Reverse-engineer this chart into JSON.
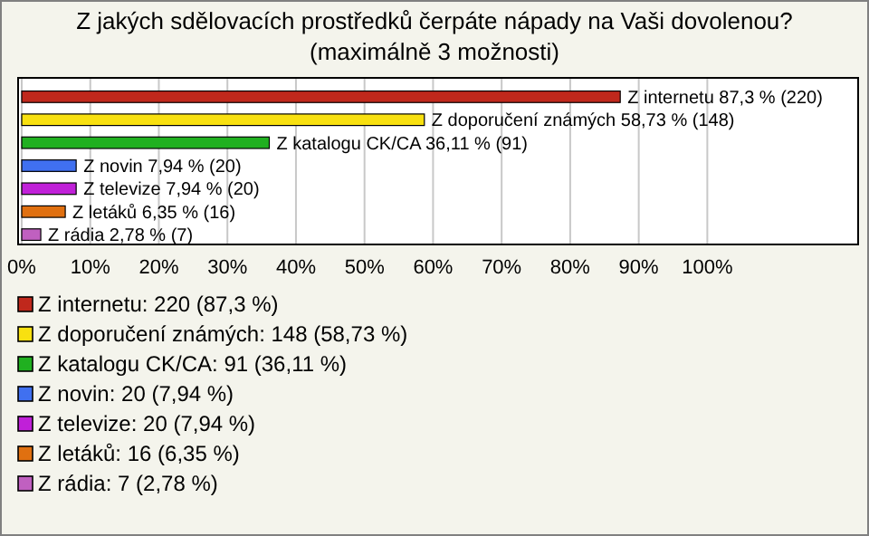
{
  "chart_data": {
    "type": "bar",
    "orientation": "horizontal",
    "title": "Z jakých sdělovacích prostředků čerpáte nápady na Vaši dovolenou?",
    "subtitle": "(maximálně 3 možnosti)",
    "categories": [
      null,
      null,
      null,
      null,
      null,
      null,
      null
    ],
    "series": [
      {
        "name": "Z internetu: 220 (87,3 %)",
        "color": "#c0281c",
        "values": [
          87.3,
          null,
          null,
          null,
          null,
          null,
          null
        ],
        "value_labels": [
          "Z internetu 87,3 % (220)",
          null,
          null,
          null,
          null,
          null,
          null
        ]
      },
      {
        "name": "Z doporučení známých: 148 (58,73 %)",
        "color": "#f8e010",
        "values": [
          null,
          58.73,
          null,
          null,
          null,
          null,
          null
        ],
        "value_labels": [
          null,
          "Z doporučení známých 58,73 % (148)",
          null,
          null,
          null,
          null,
          null
        ]
      },
      {
        "name": "Z katalogu CK/CA: 91 (36,11 %)",
        "color": "#20b020",
        "values": [
          null,
          null,
          36.11,
          null,
          null,
          null,
          null
        ],
        "value_labels": [
          null,
          null,
          "Z katalogu CK/CA 36,11 % (91)",
          null,
          null,
          null,
          null
        ]
      },
      {
        "name": "Z novin: 20 (7,94 %)",
        "color": "#4070f0",
        "values": [
          null,
          null,
          null,
          7.94,
          null,
          null,
          null
        ],
        "value_labels": [
          null,
          null,
          null,
          "Z novin 7,94 % (20)",
          null,
          null,
          null
        ]
      },
      {
        "name": "Z televize: 20 (7,94 %)",
        "color": "#c020d8",
        "values": [
          null,
          null,
          null,
          null,
          7.94,
          null,
          null
        ],
        "value_labels": [
          null,
          null,
          null,
          null,
          "Z televize 7,94 % (20)",
          null,
          null
        ]
      },
      {
        "name": "Z letáků: 16 (6,35 %)",
        "color": "#e07010",
        "values": [
          null,
          null,
          null,
          null,
          null,
          6.35,
          null
        ],
        "value_labels": [
          null,
          null,
          null,
          null,
          null,
          "Z letáků 6,35 % (16)",
          null
        ]
      },
      {
        "name": "Z rádia: 7 (2,78 %)",
        "color": "#c060c0",
        "values": [
          null,
          null,
          null,
          null,
          null,
          null,
          2.78
        ],
        "value_labels": [
          null,
          null,
          null,
          null,
          null,
          null,
          "Z rádia 2,78 % (7)"
        ]
      }
    ],
    "xlim": [
      0,
      122
    ],
    "xticks": [
      {
        "value": 0,
        "label": "0%"
      },
      {
        "value": 10,
        "label": "10%"
      },
      {
        "value": 20,
        "label": "20%"
      },
      {
        "value": 30,
        "label": "30%"
      },
      {
        "value": 40,
        "label": "40%"
      },
      {
        "value": 50,
        "label": "50%"
      },
      {
        "value": 60,
        "label": "60%"
      },
      {
        "value": 70,
        "label": "70%"
      },
      {
        "value": 80,
        "label": "80%"
      },
      {
        "value": 90,
        "label": "90%"
      },
      {
        "value": 100,
        "label": "100%"
      }
    ],
    "grid": "x",
    "legend": "bottom"
  }
}
